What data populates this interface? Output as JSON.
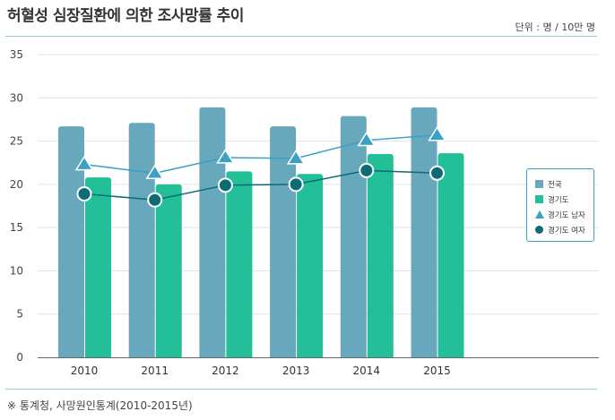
{
  "title": "허혈성 심장질환에 의한 조사망률 추이",
  "unit": "단위 : 명 / 10만 명",
  "source": "※ 통계청, 사망원인통계(2010-2015년)",
  "colors": {
    "nation_bar": "#67a8bc",
    "gyeonggi_bar": "#22bf98",
    "male_line": "#3aa0c4",
    "female_line": "#0e6b74",
    "grid": "#dde3e6",
    "rule": "#9cc9d8"
  },
  "chart_data": {
    "type": "bar",
    "categories": [
      "2010",
      "2011",
      "2012",
      "2013",
      "2014",
      "2015"
    ],
    "ylim": [
      0,
      35
    ],
    "yticks": [
      0,
      5,
      10,
      15,
      20,
      25,
      30,
      35
    ],
    "series": [
      {
        "name": "전국",
        "kind": "bar",
        "values": [
          26.7,
          27.1,
          28.9,
          26.7,
          27.9,
          28.9
        ]
      },
      {
        "name": "경기도",
        "kind": "bar",
        "values": [
          20.8,
          20.0,
          21.5,
          21.2,
          23.5,
          23.6
        ]
      },
      {
        "name": "경기도 남자",
        "kind": "line",
        "marker": "triangle",
        "values": [
          22.3,
          21.3,
          23.1,
          23.0,
          25.1,
          25.7
        ]
      },
      {
        "name": "경기도 여자",
        "kind": "line",
        "marker": "circle",
        "values": [
          18.9,
          18.2,
          19.9,
          20.0,
          21.6,
          21.3
        ]
      }
    ],
    "legend_position": "right"
  }
}
